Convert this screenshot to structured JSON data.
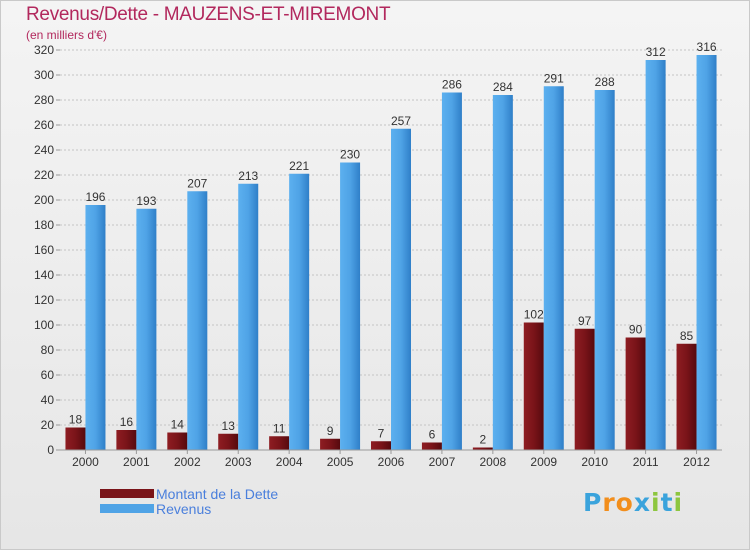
{
  "header": {
    "title": "Revenus/Dette - MAUZENS-ET-MIREMONT",
    "subtitle": "(en milliers d'€)"
  },
  "colors": {
    "debt": "#7a1419",
    "revenue": "#4fa3e6",
    "title": "#b2285d",
    "legend_text": "#4a7fdc"
  },
  "legend": {
    "items": [
      {
        "label": "Montant de la Dette",
        "color": "#7a1419"
      },
      {
        "label": "Revenus",
        "color": "#4fa3e6"
      }
    ]
  },
  "logo": {
    "text": "Proxiti",
    "letter_colors": [
      "#3aa3dc",
      "#f28e1c",
      "#f28e1c",
      "#3aa3dc",
      "#8dc63f",
      "#3aa3dc",
      "#8dc63f"
    ]
  },
  "chart_data": {
    "type": "bar",
    "categories": [
      "2000",
      "2001",
      "2002",
      "2003",
      "2004",
      "2005",
      "2006",
      "2007",
      "2008",
      "2009",
      "2010",
      "2011",
      "2012"
    ],
    "series": [
      {
        "name": "Montant de la Dette",
        "values": [
          18,
          16,
          14,
          13,
          11,
          9,
          7,
          6,
          2,
          102,
          97,
          90,
          85
        ]
      },
      {
        "name": "Revenus",
        "values": [
          196,
          193,
          207,
          213,
          221,
          230,
          257,
          286,
          284,
          291,
          288,
          312,
          316
        ]
      }
    ],
    "yticks": [
      0,
      20,
      40,
      60,
      80,
      100,
      120,
      140,
      160,
      180,
      200,
      220,
      240,
      260,
      280,
      300,
      320
    ],
    "ylim": [
      0,
      320
    ],
    "grid": true,
    "legend_position": "bottom-left"
  }
}
